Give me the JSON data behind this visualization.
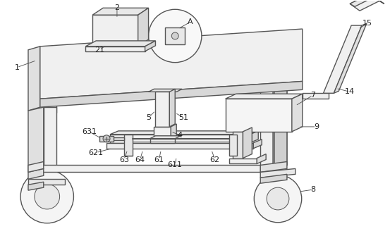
{
  "bg_color": "#ffffff",
  "line_color": "#555555",
  "lw": 1.0,
  "fig_width": 5.53,
  "fig_height": 3.35
}
